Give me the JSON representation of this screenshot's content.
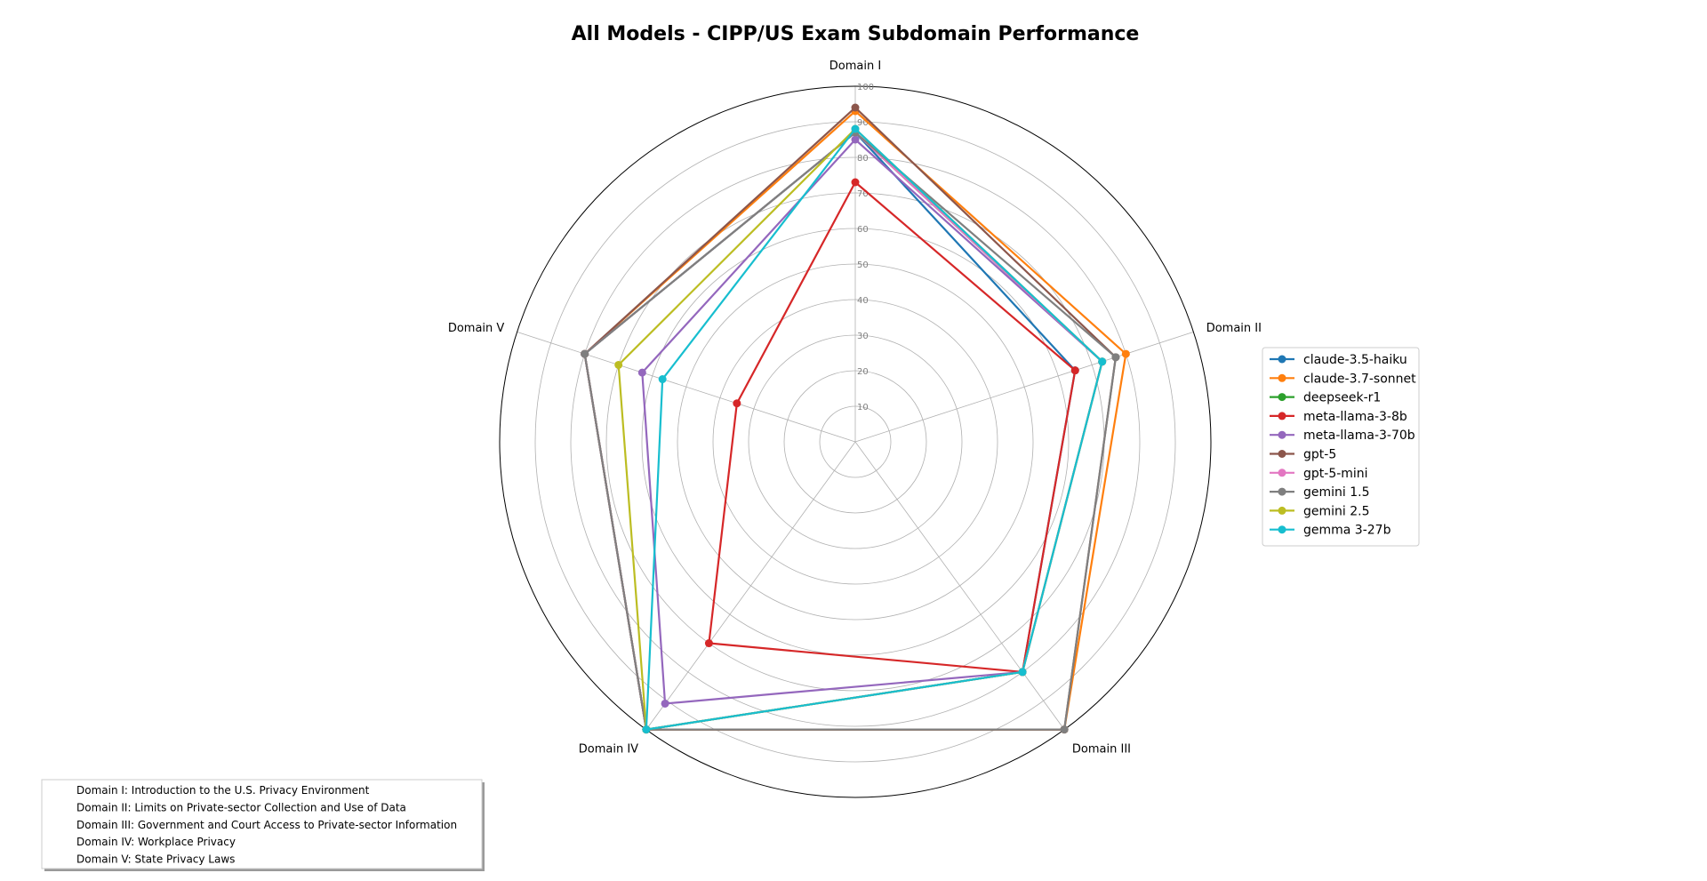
{
  "chart_data": {
    "type": "radar",
    "title": "All Models - CIPP/US Exam Subdomain Performance",
    "axes": [
      "Domain I",
      "Domain II",
      "Domain III",
      "Domain IV",
      "Domain V"
    ],
    "rlim": [
      0,
      100
    ],
    "rticks": [
      10,
      20,
      30,
      40,
      50,
      60,
      70,
      80,
      90,
      100
    ],
    "grid": true,
    "legend_position": "right",
    "series": [
      {
        "name": "claude-3.5-haiku",
        "color": "#1f77b4",
        "values": [
          87,
          65,
          80,
          100,
          80
        ]
      },
      {
        "name": "claude-3.7-sonnet",
        "color": "#ff7f0e",
        "values": [
          93,
          80,
          100,
          100,
          80
        ]
      },
      {
        "name": "deepseek-r1",
        "color": "#2ca02c",
        "values": [
          87,
          73,
          80,
          100,
          80
        ]
      },
      {
        "name": "meta-llama-3-8b",
        "color": "#d62728",
        "values": [
          73,
          65,
          80,
          70,
          35
        ]
      },
      {
        "name": "meta-llama-3-70b",
        "color": "#9467bd",
        "values": [
          85,
          73,
          80,
          91,
          63
        ]
      },
      {
        "name": "gpt-5",
        "color": "#8c564b",
        "values": [
          94,
          77,
          100,
          100,
          80
        ]
      },
      {
        "name": "gpt-5-mini",
        "color": "#e377c2",
        "values": [
          87,
          73,
          80,
          100,
          80
        ]
      },
      {
        "name": "gemini 1.5",
        "color": "#7f7f7f",
        "values": [
          87,
          77,
          100,
          100,
          80
        ]
      },
      {
        "name": "gemini 2.5",
        "color": "#bcbd22",
        "values": [
          88,
          73,
          80,
          100,
          70
        ]
      },
      {
        "name": "gemma 3-27b",
        "color": "#17becf",
        "values": [
          88,
          73,
          80,
          100,
          57
        ]
      }
    ],
    "domain_descriptions": [
      "Domain I: Introduction to the U.S. Privacy Environment",
      "Domain II: Limits on Private-sector Collection and Use of Data",
      "Domain III: Government and Court Access to Private-sector Information",
      "Domain IV: Workplace Privacy",
      "Domain V: State Privacy Laws"
    ]
  }
}
